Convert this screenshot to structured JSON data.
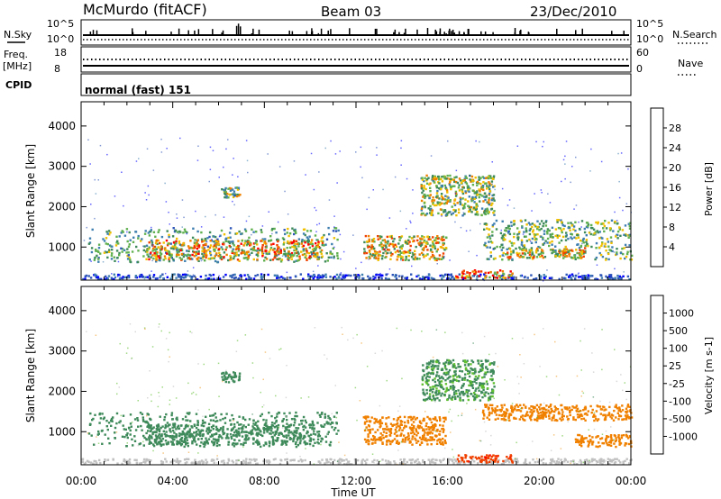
{
  "header": {
    "station": "McMurdo (fitACF)",
    "beam": "Beam 03",
    "date": "23/Dec/2010"
  },
  "status_panel": {
    "nsky_label": "N.Sky",
    "nsky_ticks": [
      "10^5",
      "10^0"
    ],
    "nsearch_label": "N.Search",
    "nsearch_ticks": [
      "10^5",
      "10^0"
    ],
    "freq_label_line1": "Freq.",
    "freq_label_line2": "[MHz]",
    "freq_ticks": [
      "18",
      "8"
    ],
    "nave_label": "Nave",
    "nave_ticks": [
      "60",
      "0"
    ],
    "cpid_label": "CPID",
    "cpid_text": "normal (fast) 151"
  },
  "time_axis": {
    "title": "Time UT",
    "ticks": [
      "00:00",
      "04:00",
      "08:00",
      "12:00",
      "16:00",
      "20:00",
      "00:00"
    ]
  },
  "colors": {
    "power_scale": [
      "#0000ff",
      "#2e55b8",
      "#3f7fb0",
      "#3f8a5a",
      "#60b050",
      "#f0c000",
      "#f08000",
      "#f04000",
      "#ff0000"
    ],
    "velocity_scale": [
      "#ff0000",
      "#f04000",
      "#f08000",
      "#f0a030",
      "#c0c0c0",
      "#60c030",
      "#3f8a5a",
      "#2e55b8",
      "#2040c0"
    ]
  },
  "chart_data": [
    {
      "type": "heatmap",
      "name": "power",
      "ylabel": "Slant Range [km]",
      "y_ticks": [
        "1000",
        "2000",
        "3000",
        "4000"
      ],
      "ylim": [
        180,
        4600
      ],
      "xlim_hours": [
        0,
        24
      ],
      "colorbar_title": "Power [dB]",
      "colorbar_ticks": [
        "4",
        "8",
        "12",
        "16",
        "20",
        "24",
        "28"
      ],
      "features": [
        {
          "t0": 0.0,
          "t1": 24.0,
          "r0": 220,
          "r1": 350,
          "value": 6
        },
        {
          "t0": 0.3,
          "t1": 11.2,
          "r0": 650,
          "r1": 1500,
          "value": 14
        },
        {
          "t0": 2.8,
          "t1": 10.5,
          "r0": 700,
          "r1": 1200,
          "value": 24
        },
        {
          "t0": 6.1,
          "t1": 6.9,
          "r0": 2250,
          "r1": 2500,
          "value": 18
        },
        {
          "t0": 12.3,
          "t1": 15.9,
          "r0": 700,
          "r1": 1300,
          "value": 22
        },
        {
          "t0": 14.8,
          "t1": 18.0,
          "r0": 1800,
          "r1": 2800,
          "value": 18
        },
        {
          "t0": 16.3,
          "t1": 18.8,
          "r0": 250,
          "r1": 450,
          "value": 28
        },
        {
          "t0": 17.5,
          "t1": 24.0,
          "r0": 700,
          "r1": 1700,
          "value": 16
        },
        {
          "t0": 18.5,
          "t1": 22.0,
          "r0": 750,
          "r1": 1000,
          "value": 22
        }
      ]
    },
    {
      "type": "heatmap",
      "name": "velocity",
      "ylabel": "Slant Range [km]",
      "y_ticks": [
        "1000",
        "2000",
        "3000",
        "4000"
      ],
      "ylim": [
        180,
        4600
      ],
      "xlim_hours": [
        0,
        24
      ],
      "colorbar_title": "Velocity [m s-1]",
      "colorbar_ticks": [
        "-1000",
        "-500",
        "-100",
        "-25",
        "25",
        "100",
        "500",
        "1000"
      ],
      "features": [
        {
          "t0": 0.0,
          "t1": 24.0,
          "r0": 220,
          "r1": 350,
          "value": 0
        },
        {
          "t0": 0.3,
          "t1": 11.2,
          "r0": 650,
          "r1": 1500,
          "value": 150
        },
        {
          "t0": 2.8,
          "t1": 10.5,
          "r0": 700,
          "r1": 1200,
          "value": 200
        },
        {
          "t0": 6.1,
          "t1": 6.9,
          "r0": 2250,
          "r1": 2500,
          "value": 300
        },
        {
          "t0": 12.3,
          "t1": 15.9,
          "r0": 700,
          "r1": 1400,
          "value": -150
        },
        {
          "t0": 14.8,
          "t1": 18.0,
          "r0": 1800,
          "r1": 2800,
          "value": 120
        },
        {
          "t0": 16.3,
          "t1": 18.8,
          "r0": 250,
          "r1": 450,
          "value": -800
        },
        {
          "t0": 17.5,
          "t1": 24.0,
          "r0": 1300,
          "r1": 1700,
          "value": -200
        },
        {
          "t0": 21.5,
          "t1": 24.0,
          "r0": 650,
          "r1": 950,
          "value": -300
        }
      ]
    }
  ]
}
